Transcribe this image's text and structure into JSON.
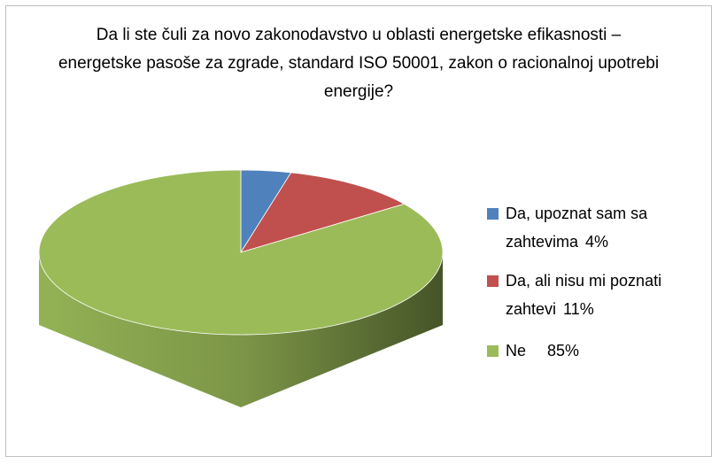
{
  "chart_data": {
    "type": "pie",
    "title": "Da li ste čuli  za novo zakonodavstvo u oblasti energetske efikasnosti – energetske pasoše za zgrade, standard ISO 50001, zakon o racionalnoj upotrebi energije?",
    "categories": [
      "Da, upoznat sam sa zahtevima",
      "Da, ali nisu mi poznati zahtevi",
      "Ne"
    ],
    "values": [
      4,
      11,
      85
    ],
    "value_labels": [
      "4%",
      "11%",
      "85%"
    ],
    "colors": [
      "#4f81bd",
      "#c0504d",
      "#9bbb59"
    ],
    "legend": "right"
  }
}
